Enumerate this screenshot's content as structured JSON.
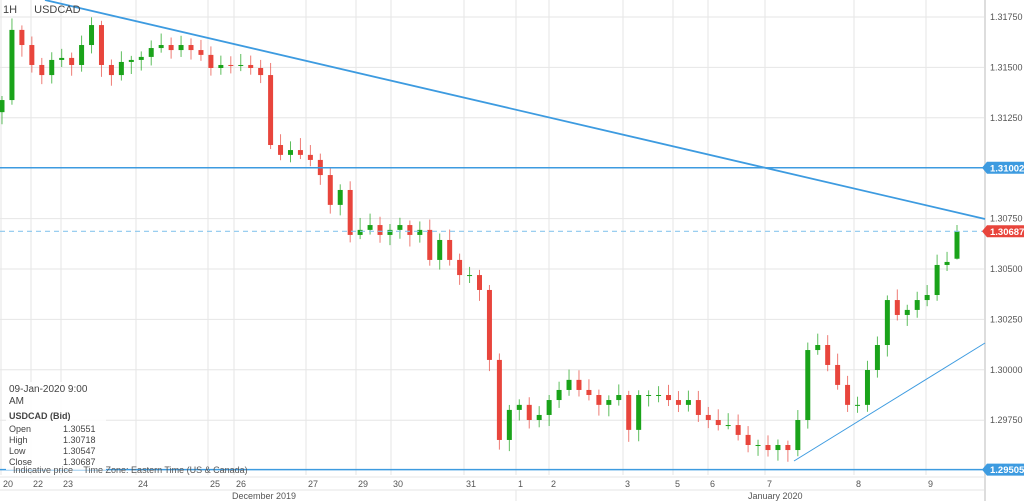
{
  "header": {
    "timeframe": "1H",
    "symbol": "USDCAD"
  },
  "info": {
    "timestamp": "09-Jan-2020 9:00 AM",
    "instrument": "USDCAD (Bid)",
    "rows": [
      {
        "label": "Open",
        "value": "1.30551"
      },
      {
        "label": "High",
        "value": "1.30718"
      },
      {
        "label": "Low",
        "value": "1.30547"
      },
      {
        "label": "Close",
        "value": "1.30687"
      }
    ]
  },
  "footer": {
    "note": "Indicative price",
    "timezone": "Time Zone: Eastern Time (US & Canada)"
  },
  "chart_data": {
    "type": "candlestick",
    "title": "USDCAD",
    "timeframe": "1H",
    "ylim": [
      1.2945,
      1.3183
    ],
    "y_ticks": [
      "1.31750",
      "1.31500",
      "1.31250",
      "1.30750",
      "1.30500",
      "1.30250",
      "1.30000",
      "1.29750"
    ],
    "y_tick_values": [
      1.3175,
      1.315,
      1.3125,
      1.3075,
      1.305,
      1.3025,
      1.3,
      1.2975
    ],
    "x_ticks": [
      "20",
      "22",
      "23",
      "24",
      "25",
      "26",
      "27",
      "29",
      "30",
      "31",
      "1",
      "2",
      "3",
      "5",
      "6",
      "7",
      "8",
      "9"
    ],
    "month_labels": [
      "December 2019",
      "January 2020"
    ],
    "closes": [
      1.31338,
      1.31686,
      1.31611,
      1.31512,
      1.31462,
      1.31537,
      1.31547,
      1.31512,
      1.31611,
      1.3171,
      1.31512,
      1.31462,
      1.31527,
      1.31537,
      1.31552,
      1.31596,
      1.31611,
      1.31586,
      1.31611,
      1.31586,
      1.31562,
      1.31497,
      1.31512,
      1.31507,
      1.31512,
      1.31497,
      1.31462,
      1.31115,
      1.31066,
      1.3109,
      1.31066,
      1.31041,
      1.30966,
      1.30818,
      1.30892,
      1.30669,
      1.30694,
      1.30718,
      1.30669,
      1.30694,
      1.30718,
      1.30669,
      1.30694,
      1.30545,
      1.30644,
      1.30545,
      1.3047,
      1.3047,
      1.30396,
      1.30049,
      1.29652,
      1.29801,
      1.29826,
      1.29751,
      1.29776,
      1.2985,
      1.299,
      1.2995,
      1.299,
      1.29875,
      1.29826,
      1.2985,
      1.29875,
      1.29702,
      1.29875,
      1.29875,
      1.29875,
      1.2985,
      1.29826,
      1.2985,
      1.29776,
      1.29751,
      1.29726,
      1.29726,
      1.29677,
      1.29627,
      1.29627,
      1.29602,
      1.29627,
      1.29602,
      1.29751,
      1.30098,
      1.30123,
      1.30024,
      1.29925,
      1.29826,
      1.29826,
      1.29999,
      1.30123,
      1.30346,
      1.30272,
      1.30297,
      1.30346,
      1.30371,
      1.3052,
      1.30535,
      1.30687
    ],
    "levels": [
      {
        "label": "1.31002",
        "value": 1.31002,
        "style": "solid"
      },
      {
        "label": "1.30687",
        "value": 1.30687,
        "style": "dashed-current"
      },
      {
        "label": "1.29505",
        "value": 1.29505,
        "style": "solid"
      }
    ],
    "colors": {
      "up": "#1aa31a",
      "down": "#e8453c",
      "line": "#3d9be0",
      "current": "#e8453c",
      "grid": "#e6e6e6"
    },
    "grid": true
  }
}
